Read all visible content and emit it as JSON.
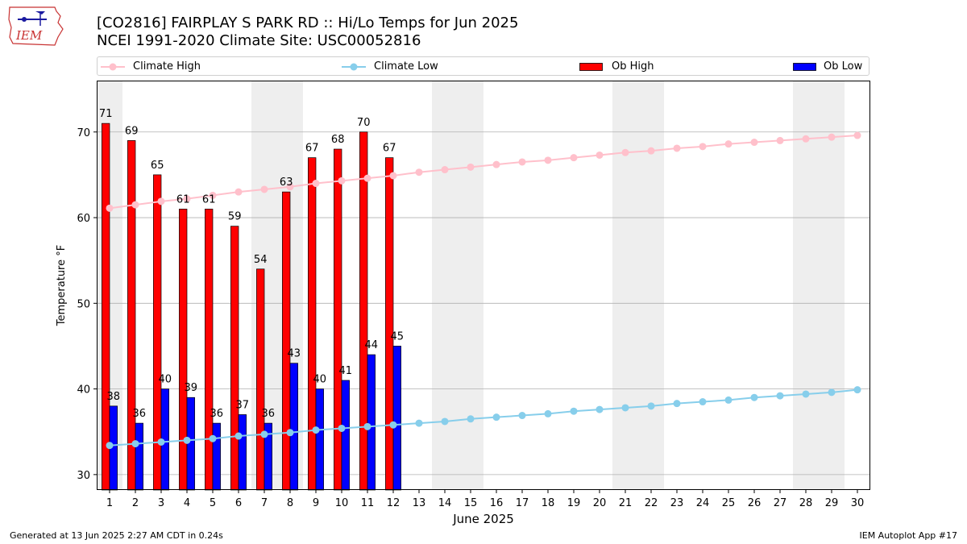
{
  "header": {
    "title_line1": "[CO2816] FAIRPLAY S PARK RD :: Hi/Lo Temps for Jun 2025",
    "title_line2": "NCEI 1991-2020 Climate Site: USC00052816",
    "logo_text": "IEM"
  },
  "legend": {
    "climate_high": "Climate High",
    "climate_low": "Climate Low",
    "ob_high": "Ob High",
    "ob_low": "Ob Low"
  },
  "footer": {
    "left": "Generated at 13 Jun 2025 2:27 AM CDT in 0.24s",
    "right": "IEM Autoplot App #17"
  },
  "colors": {
    "climate_high": "#ffc0cb",
    "climate_low": "#87ceeb",
    "ob_high": "#ff0000",
    "ob_low": "#0000ff",
    "weekend_shade": "#eeeeee",
    "grid": "#b0b0b0"
  },
  "chart_data": {
    "type": "bar",
    "xlabel": "June 2025",
    "ylabel": "Temperature °F",
    "xlim": [
      0.5,
      30.5
    ],
    "ylim": [
      28.2,
      76
    ],
    "yticks": [
      30,
      40,
      50,
      60,
      70
    ],
    "grid": "horizontal",
    "legend_position": "top",
    "days": [
      1,
      2,
      3,
      4,
      5,
      6,
      7,
      8,
      9,
      10,
      11,
      12,
      13,
      14,
      15,
      16,
      17,
      18,
      19,
      20,
      21,
      22,
      23,
      24,
      25,
      26,
      27,
      28,
      29,
      30
    ],
    "shaded_days": [
      1,
      7,
      8,
      14,
      15,
      21,
      22,
      28,
      29
    ],
    "series": [
      {
        "name": "Ob High",
        "kind": "bar",
        "values": [
          71,
          69,
          65,
          61,
          61,
          59,
          54,
          63,
          67,
          68,
          70,
          67
        ]
      },
      {
        "name": "Ob Low",
        "kind": "bar",
        "values": [
          38,
          36,
          40,
          39,
          36,
          37,
          36,
          43,
          40,
          41,
          44,
          45
        ]
      },
      {
        "name": "Climate High",
        "kind": "line",
        "values": [
          61.1,
          61.5,
          61.9,
          62.2,
          62.6,
          63.0,
          63.3,
          63.6,
          64.0,
          64.3,
          64.6,
          64.9,
          65.3,
          65.6,
          65.9,
          66.2,
          66.5,
          66.7,
          67.0,
          67.3,
          67.6,
          67.8,
          68.1,
          68.3,
          68.6,
          68.8,
          69.0,
          69.2,
          69.4,
          69.6
        ]
      },
      {
        "name": "Climate Low",
        "kind": "line",
        "values": [
          33.4,
          33.6,
          33.8,
          34.0,
          34.2,
          34.5,
          34.7,
          34.9,
          35.2,
          35.4,
          35.6,
          35.8,
          36.0,
          36.2,
          36.5,
          36.7,
          36.9,
          37.1,
          37.4,
          37.6,
          37.8,
          38.0,
          38.3,
          38.5,
          38.7,
          39.0,
          39.2,
          39.4,
          39.6,
          39.9
        ]
      }
    ]
  }
}
